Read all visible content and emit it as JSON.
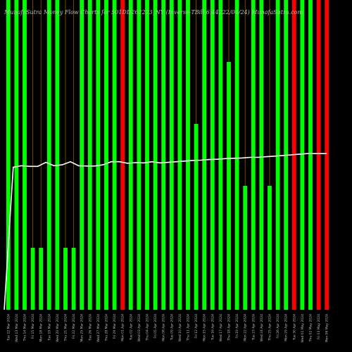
{
  "chart_data": {
    "type": "bar",
    "title": "MunafaSutra Money Flow Charts for 501DD262223_NY (Inverse-TBill 6.44222/04/24) MunafaSutra.com",
    "categories": [
      "Tue 12 Mar 2024",
      "Wed 13 Mar 2024",
      "Thu 14 Mar 2024",
      "Fri 15 Mar 2024",
      "Mon 18 Mar 2024",
      "Tue 19 Mar 2024",
      "Wed 20 Mar 2024",
      "Thu 21 Mar 2024",
      "Fri 22 Mar 2024",
      "Mon 25 Mar 2024",
      "Tue 26 Mar 2024",
      "Wed 27 Mar 2024",
      "Thu 28 Mar 2024",
      "Fri 29 Mar 2024",
      "Mon 01 Apr 2024",
      "Tue 02 Apr 2024",
      "Wed 03 Apr 2024",
      "Thu 04 Apr 2024",
      "Fri 05 Apr 2024",
      "Mon 08 Apr 2024",
      "Tue 09 Apr 2024",
      "Wed 10 Apr 2024",
      "Thu 11 Apr 2024",
      "Fri 12 Apr 2024",
      "Mon 15 Apr 2024",
      "Tue 16 Apr 2024",
      "Wed 17 Apr 2024",
      "Thu 18 Apr 2024",
      "Fri 19 Apr 2024",
      "Mon 22 Apr 2024",
      "Tue 23 Apr 2024",
      "Wed 24 Apr 2024",
      "Thu 25 Apr 2024",
      "Fri 26 Apr 2024",
      "Mon 29 Apr 2024",
      "Tue 30 Apr 2024",
      "Wed 01 May 2024",
      "Thu 02 May 2024",
      "Fri 03 May 2024",
      "Mon 06 May 2024"
    ],
    "series": [
      {
        "values": [
          100,
          100,
          100,
          20,
          20,
          100,
          100,
          20,
          20,
          100,
          100,
          100,
          100,
          100,
          100,
          100,
          100,
          100,
          100,
          100,
          100,
          100,
          100,
          60,
          100,
          100,
          100,
          80,
          100,
          40,
          100,
          100,
          40,
          100,
          100,
          100,
          100,
          100,
          100,
          100
        ],
        "colors": [
          "#00ff00",
          "#00ff00",
          "#00ff00",
          "#00ff00",
          "#00ff00",
          "#00ff00",
          "#00ff00",
          "#00ff00",
          "#00ff00",
          "#00ff00",
          "#00ff00",
          "#00ff00",
          "#00ff00",
          "#00ff00",
          "#ff0000",
          "#00ff00",
          "#00ff00",
          "#00ff00",
          "#00ff00",
          "#00ff00",
          "#00ff00",
          "#00ff00",
          "#00ff00",
          "#00ff00",
          "#00ff00",
          "#00ff00",
          "#00ff00",
          "#00ff00",
          "#00ff00",
          "#00ff00",
          "#00ff00",
          "#00ff00",
          "#00ff00",
          "#00ff00",
          "#00ff00",
          "#ff0000",
          "#00ff00",
          "#00ff00",
          "#ff0000",
          "#ff0000"
        ]
      },
      {
        "type": "line",
        "color": "#ffffff",
        "values": [
          0,
          46,
          46.5,
          46.3,
          46.3,
          47.6,
          46.5,
          46.8,
          47.8,
          46.5,
          46.4,
          46.4,
          46.8,
          47.8,
          47.8,
          47.3,
          47.5,
          47.4,
          47.8,
          47.4,
          47.6,
          47.8,
          48.0,
          48.2,
          48.3,
          48.5,
          48.6,
          48.8,
          48.9,
          49.0,
          49.2,
          49.2,
          49.4,
          49.6,
          49.8,
          50.0,
          50.2,
          50.4,
          50.4,
          50.4
        ]
      }
    ],
    "ylim": [
      0,
      100
    ],
    "grid": false,
    "bar_trace_color": "#8a5a00",
    "background": "#000000"
  }
}
